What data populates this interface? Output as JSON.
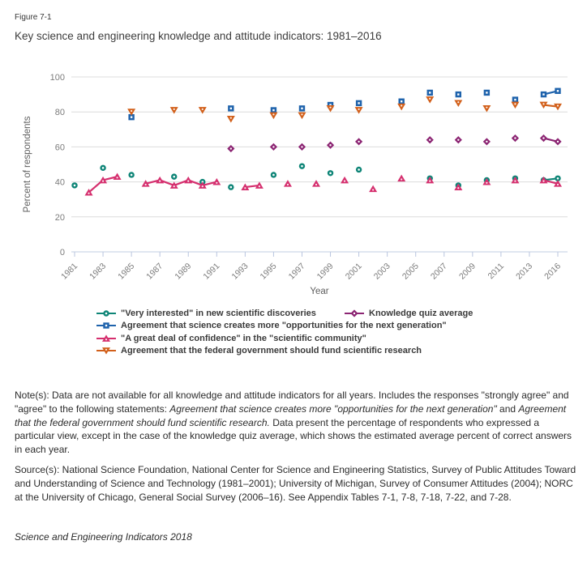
{
  "figure": {
    "label": "Figure 7-1",
    "title": "Key science and engineering knowledge and attitude indicators: 1981–2016"
  },
  "chart_data": {
    "type": "line",
    "title": "Key science and engineering knowledge and attitude indicators: 1981–2016",
    "xlabel": "Year",
    "ylabel": "Percent of respondents",
    "ylim": [
      0,
      100
    ],
    "yticks": [
      0,
      20,
      40,
      60,
      80,
      100
    ],
    "xticks": [
      1981,
      1983,
      1985,
      1987,
      1989,
      1991,
      1993,
      1995,
      1997,
      1999,
      2001,
      2003,
      2005,
      2007,
      2009,
      2011,
      2013,
      2016
    ],
    "grid": "horizontal",
    "legend_position": "bottom",
    "series": [
      {
        "name": "\"Very interested\" in new scientific discoveries",
        "color": "#0E8577",
        "marker": "circle",
        "points": [
          [
            1981,
            38
          ],
          [
            1983,
            48
          ],
          [
            1985,
            44
          ],
          [
            1988,
            43
          ],
          [
            1990,
            40
          ],
          [
            1992,
            37
          ],
          [
            1995,
            44
          ],
          [
            1997,
            49
          ],
          [
            1999,
            45
          ],
          [
            2001,
            47
          ],
          [
            2006,
            42
          ],
          [
            2008,
            38
          ],
          [
            2010,
            41
          ],
          [
            2012,
            42
          ],
          [
            2014,
            41
          ],
          [
            2016,
            42
          ]
        ],
        "connected_runs": [
          [
            2014,
            2016
          ]
        ]
      },
      {
        "name": "Agreement that science creates more \"opportunities for the next generation\"",
        "color": "#1F63AC",
        "marker": "square",
        "points": [
          [
            1985,
            77
          ],
          [
            1992,
            82
          ],
          [
            1995,
            81
          ],
          [
            1997,
            82
          ],
          [
            1999,
            84
          ],
          [
            2001,
            85
          ],
          [
            2004,
            86
          ],
          [
            2006,
            91
          ],
          [
            2008,
            90
          ],
          [
            2010,
            91
          ],
          [
            2012,
            87
          ],
          [
            2014,
            90
          ],
          [
            2016,
            92
          ]
        ],
        "connected_runs": [
          [
            2014,
            2016
          ]
        ]
      },
      {
        "name": "\"A great deal of confidence\" in the \"scientific community\"",
        "color": "#D52F6E",
        "marker": "triangle-up",
        "points": [
          [
            1982,
            34
          ],
          [
            1983,
            41
          ],
          [
            1984,
            43
          ],
          [
            1986,
            39
          ],
          [
            1987,
            41
          ],
          [
            1988,
            38
          ],
          [
            1989,
            41
          ],
          [
            1990,
            38
          ],
          [
            1991,
            40
          ],
          [
            1993,
            37
          ],
          [
            1994,
            38
          ],
          [
            1996,
            39
          ],
          [
            1998,
            39
          ],
          [
            2000,
            41
          ],
          [
            2002,
            36
          ],
          [
            2004,
            42
          ],
          [
            2006,
            41
          ],
          [
            2008,
            37
          ],
          [
            2010,
            40
          ],
          [
            2012,
            41
          ],
          [
            2014,
            41
          ],
          [
            2016,
            39
          ]
        ],
        "connected_runs": [
          [
            1982,
            1983,
            1984
          ],
          [
            1986,
            1987,
            1988,
            1989,
            1990,
            1991
          ],
          [
            1993,
            1994
          ],
          [
            2014,
            2016
          ]
        ]
      },
      {
        "name": "Knowledge quiz average",
        "color": "#8C2573",
        "marker": "diamond",
        "points": [
          [
            1992,
            59
          ],
          [
            1995,
            60
          ],
          [
            1997,
            60
          ],
          [
            1999,
            61
          ],
          [
            2001,
            63
          ],
          [
            2006,
            64
          ],
          [
            2008,
            64
          ],
          [
            2010,
            63
          ],
          [
            2012,
            65
          ],
          [
            2014,
            65
          ],
          [
            2016,
            63
          ]
        ],
        "connected_runs": [
          [
            2014,
            2016
          ]
        ]
      },
      {
        "name": "Agreement that the federal government should fund scientific research",
        "color": "#D2601B",
        "marker": "triangle-down",
        "points": [
          [
            1985,
            80
          ],
          [
            1988,
            81
          ],
          [
            1990,
            81
          ],
          [
            1992,
            76
          ],
          [
            1995,
            78
          ],
          [
            1997,
            78
          ],
          [
            1999,
            82
          ],
          [
            2001,
            81
          ],
          [
            2004,
            83
          ],
          [
            2006,
            87
          ],
          [
            2008,
            85
          ],
          [
            2010,
            82
          ],
          [
            2012,
            84
          ],
          [
            2014,
            84
          ],
          [
            2016,
            83
          ]
        ],
        "connected_runs": [
          [
            2014,
            2016
          ]
        ]
      }
    ]
  },
  "notes": {
    "runs": [
      {
        "t": "Note(s): Data are not available for all knowledge and attitude indicators for all years. Includes the responses \"strongly agree\" and \"agree\" to the following statements: ",
        "i": false
      },
      {
        "t": "Agreement that science creates more \"opportunities for the next generation\"",
        "i": true
      },
      {
        "t": " and ",
        "i": false
      },
      {
        "t": "Agreement that the federal government should fund scientific research.",
        "i": true
      },
      {
        "t": "  Data present the percentage of respondents who expressed a particular view, except in the case of the knowledge quiz average, which shows the estimated average percent of correct answers in each year.",
        "i": false
      }
    ]
  },
  "source": {
    "runs": [
      {
        "t": "Source(s): National Science Foundation, National Center for Science and Engineering Statistics, Survey of Public Attitudes Toward and Understanding of Science and Technology (1981–2001); University of Michigan, Survey of Consumer Attitudes (2004); NORC at the University of Chicago, General Social Survey (2006–16). See Appendix Tables 7-1, 7-8, 7-18, 7-22, and 7-28.",
        "i": false
      }
    ]
  },
  "footer": {
    "text": "Science and Engineering Indicators 2018"
  }
}
